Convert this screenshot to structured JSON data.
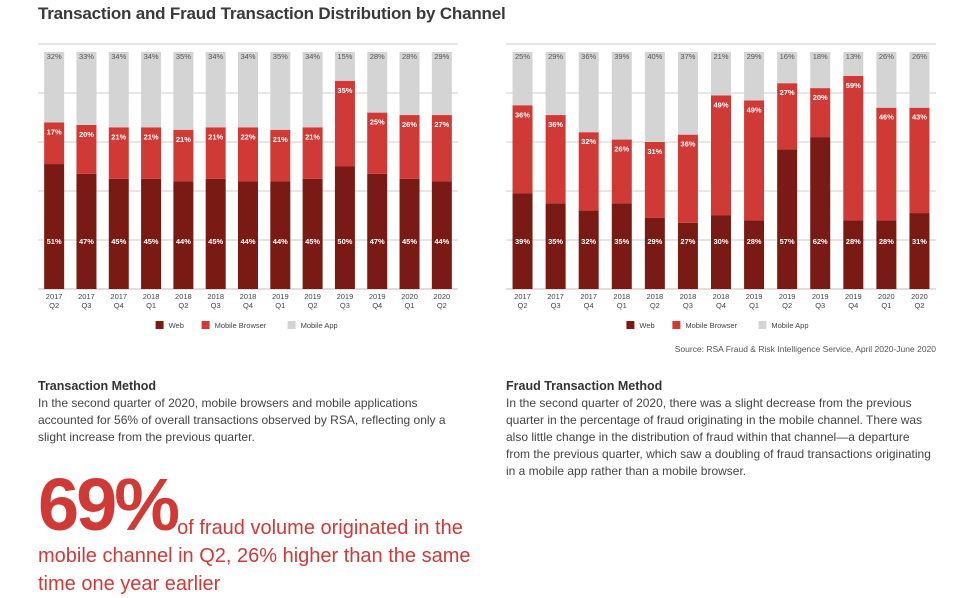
{
  "title": "Transaction and Fraud Transaction Distribution by Channel",
  "colors": {
    "web": "#7a1a14",
    "mobile_browser": "#d03a36",
    "mobile_app": "#d4d4d4",
    "accent": "#d03a36"
  },
  "chart_data": [
    {
      "type": "bar",
      "stacked": true,
      "normalized_percent": true,
      "grid": true,
      "legend_position": "bottom",
      "categories": [
        "2017 Q2",
        "2017 Q3",
        "2017 Q4",
        "2018 Q1",
        "2018 Q2",
        "2018 Q3",
        "2018 Q4",
        "2019 Q1",
        "2019 Q2",
        "2019 Q3",
        "2019 Q4",
        "2020 Q1",
        "2020 Q2"
      ],
      "series": [
        {
          "name": "Web",
          "values": [
            51,
            47,
            45,
            45,
            44,
            45,
            44,
            44,
            45,
            50,
            47,
            45,
            44
          ]
        },
        {
          "name": "Mobile Browser",
          "values": [
            17,
            20,
            21,
            21,
            21,
            21,
            22,
            21,
            21,
            35,
            25,
            26,
            27
          ]
        },
        {
          "name": "Mobile App",
          "values": [
            32,
            33,
            34,
            34,
            35,
            34,
            34,
            35,
            34,
            15,
            28,
            28,
            29
          ]
        }
      ]
    },
    {
      "type": "bar",
      "stacked": true,
      "normalized_percent": true,
      "grid": true,
      "legend_position": "bottom",
      "categories": [
        "2017 Q2",
        "2017 Q3",
        "2017 Q4",
        "2018 Q1",
        "2018 Q2",
        "2018 Q3",
        "2018 Q4",
        "2019 Q1",
        "2019 Q2",
        "2019 Q3",
        "2019 Q4",
        "2020 Q1",
        "2020 Q2"
      ],
      "series": [
        {
          "name": "Web",
          "values": [
            39,
            35,
            32,
            35,
            29,
            27,
            30,
            28,
            57,
            62,
            28,
            28,
            31
          ]
        },
        {
          "name": "Mobile Browser",
          "values": [
            36,
            36,
            32,
            26,
            31,
            36,
            49,
            49,
            27,
            20,
            59,
            46,
            43
          ]
        },
        {
          "name": "Mobile App",
          "values": [
            25,
            29,
            36,
            39,
            40,
            37,
            21,
            29,
            16,
            18,
            13,
            26,
            26
          ]
        }
      ]
    }
  ],
  "source": "Source: RSA Fraud & Risk Intelligence Service, April 2020-June 2020",
  "transaction_method": {
    "heading": "Transaction Method",
    "body": "In the second quarter of 2020, mobile browsers and mobile applications accounted for 56% of overall transactions observed by RSA, reflecting only a slight increase from the previous quarter."
  },
  "fraud_transaction_method": {
    "heading": "Fraud Transaction Method",
    "body": "In the second quarter of 2020, there was a slight decrease from the previous quarter in the percentage of fraud originating in the mobile channel. There was also little change in the distribution of fraud within that channel—a departure from the previous quarter, which saw a doubling of fraud transactions originating in a mobile app rather than a mobile browser."
  },
  "callout": {
    "big": "69%",
    "text": "of fraud volume originated in the mobile channel in Q2, 26% higher than the same time one year earlier"
  }
}
